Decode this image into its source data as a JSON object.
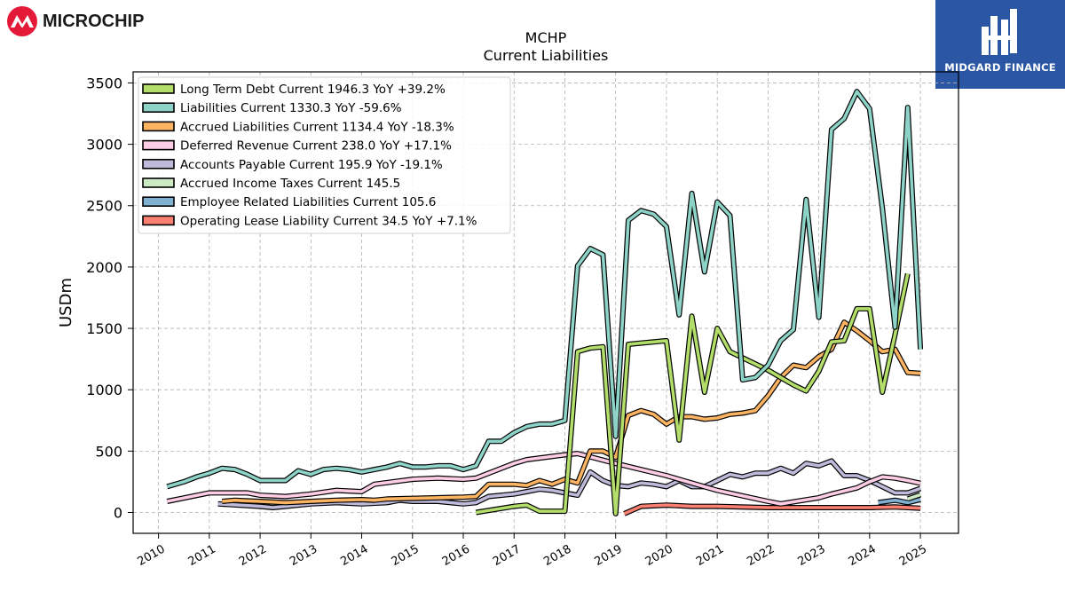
{
  "brand": {
    "left_name": "MICROCHIP",
    "right_name": "MIDGARD FINANCE"
  },
  "title_lines": [
    "MCHP",
    "Current  Liabilities"
  ],
  "chart_data": {
    "type": "line",
    "title": "MCHP\nCurrent  Liabilities",
    "ylabel": "USDm",
    "xlabel": "",
    "ylim": [
      -170,
      3590
    ],
    "xlim": [
      2009.5,
      2025.75
    ],
    "yticks": [
      0,
      500,
      1000,
      1500,
      2000,
      2500,
      3000,
      3500
    ],
    "xticks": [
      2010,
      2011,
      2012,
      2013,
      2014,
      2015,
      2016,
      2017,
      2018,
      2019,
      2020,
      2021,
      2022,
      2023,
      2024,
      2025
    ],
    "grid": true,
    "legend_position": "top-left",
    "series": [
      {
        "name": "Liabilities Current",
        "legend": "Liabilities Current  1330.3 YoY -59.6%",
        "color": "#8dd3c7",
        "x": [
          2010.17,
          2010.5,
          2010.75,
          2011.0,
          2011.25,
          2011.5,
          2011.75,
          2012.0,
          2012.25,
          2012.5,
          2012.75,
          2013.0,
          2013.25,
          2013.5,
          2013.75,
          2014.0,
          2014.25,
          2014.5,
          2014.75,
          2015.0,
          2015.25,
          2015.5,
          2015.75,
          2016.0,
          2016.25,
          2016.5,
          2016.75,
          2017.0,
          2017.25,
          2017.5,
          2017.75,
          2018.0,
          2018.25,
          2018.5,
          2018.75,
          2019.0,
          2019.25,
          2019.5,
          2019.75,
          2020.0,
          2020.25,
          2020.5,
          2020.75,
          2021.0,
          2021.25,
          2021.5,
          2021.75,
          2022.0,
          2022.25,
          2022.5,
          2022.75,
          2023.0,
          2023.25,
          2023.5,
          2023.75,
          2024.0,
          2024.25,
          2024.5,
          2024.75,
          2025.0
        ],
        "y": [
          210,
          250,
          290,
          320,
          360,
          350,
          310,
          260,
          260,
          260,
          340,
          310,
          350,
          360,
          350,
          330,
          350,
          370,
          400,
          370,
          370,
          380,
          380,
          350,
          380,
          580,
          580,
          650,
          700,
          720,
          720,
          750,
          2010,
          2150,
          2100,
          620,
          2380,
          2460,
          2430,
          2330,
          1610,
          2600,
          1960,
          2530,
          2420,
          1080,
          1100,
          1200,
          1400,
          1490,
          2550,
          1590,
          3120,
          3210,
          3430,
          3290,
          2480,
          1510,
          3300,
          1330
        ]
      },
      {
        "name": "Long Term Debt Current",
        "legend": "Long Term Debt Current  1946.3 YoY +39.2%",
        "color": "#b3de69",
        "x": [
          2016.25,
          2017.0,
          2017.25,
          2017.5,
          2017.75,
          2018.0,
          2018.25,
          2018.5,
          2018.75,
          2019.0,
          2019.25,
          2019.5,
          2019.75,
          2020.0,
          2020.25,
          2020.5,
          2020.75,
          2021.0,
          2021.25,
          2021.5,
          2021.75,
          2022.0,
          2022.25,
          2022.5,
          2022.75,
          2023.0,
          2023.25,
          2023.5,
          2023.75,
          2024.0,
          2024.25,
          2024.5,
          2024.75
        ],
        "y": [
          0,
          50,
          60,
          10,
          10,
          10,
          1310,
          1340,
          1350,
          -10,
          1370,
          1380,
          1390,
          1400,
          590,
          1600,
          980,
          1500,
          1310,
          1260,
          1210,
          1160,
          1100,
          1040,
          990,
          1150,
          1390,
          1400,
          1660,
          1660,
          980,
          1450,
          1946
        ]
      },
      {
        "name": "Accrued Liabilities Current",
        "legend": "Accrued Liabilities Current  1134.4 YoY -18.3%",
        "color": "#fdb462",
        "x": [
          2011.25,
          2011.5,
          2011.75,
          2012.0,
          2012.5,
          2013.0,
          2013.5,
          2014.0,
          2014.25,
          2014.5,
          2015.0,
          2015.5,
          2016.0,
          2016.25,
          2016.5,
          2016.75,
          2017.0,
          2017.25,
          2017.5,
          2017.75,
          2018.0,
          2018.25,
          2018.5,
          2018.75,
          2019.0,
          2019.25,
          2019.5,
          2019.75,
          2020.0,
          2020.25,
          2020.5,
          2020.75,
          2021.0,
          2021.25,
          2021.5,
          2021.75,
          2022.0,
          2022.25,
          2022.5,
          2022.75,
          2023.0,
          2023.25,
          2023.5,
          2023.75,
          2024.0,
          2024.25,
          2024.5,
          2024.75,
          2025.0
        ],
        "y": [
          90,
          100,
          95,
          90,
          80,
          90,
          100,
          105,
          100,
          110,
          115,
          120,
          125,
          130,
          230,
          230,
          230,
          220,
          260,
          230,
          270,
          240,
          500,
          500,
          450,
          790,
          830,
          800,
          720,
          780,
          780,
          760,
          770,
          800,
          810,
          830,
          950,
          1100,
          1200,
          1180,
          1270,
          1330,
          1550,
          1480,
          1400,
          1310,
          1330,
          1140,
          1134
        ]
      },
      {
        "name": "Deferred Revenue Current",
        "legend": "Deferred Revenue Current  238.0 YoY +17.1%",
        "color": "#fccde5",
        "x": [
          2010.17,
          2011.0,
          2011.5,
          2011.75,
          2012.0,
          2012.5,
          2013.0,
          2013.5,
          2014.0,
          2014.25,
          2015.0,
          2015.5,
          2016.0,
          2016.25,
          2017.0,
          2017.25,
          2018.0,
          2018.25,
          2019.0,
          2020.0,
          2021.0,
          2022.0,
          2022.25,
          2023.0,
          2023.25,
          2023.75,
          2024.0,
          2024.25,
          2024.5,
          2024.75,
          2025.0
        ],
        "y": [
          90,
          160,
          160,
          160,
          140,
          130,
          150,
          180,
          170,
          230,
          270,
          280,
          270,
          280,
          400,
          430,
          470,
          480,
          400,
          300,
          180,
          90,
          70,
          120,
          150,
          200,
          250,
          290,
          280,
          260,
          238
        ]
      },
      {
        "name": "Accounts Payable Current",
        "legend": "Accounts Payable Current  195.9 YoY -19.1%",
        "color": "#bebada",
        "x": [
          2011.17,
          2012.0,
          2012.25,
          2012.5,
          2013.0,
          2013.5,
          2014.0,
          2014.5,
          2014.75,
          2015.0,
          2015.5,
          2016.0,
          2016.25,
          2016.5,
          2017.0,
          2017.25,
          2017.5,
          2017.75,
          2018.0,
          2018.25,
          2018.5,
          2018.75,
          2019.0,
          2019.25,
          2019.5,
          2019.75,
          2020.0,
          2020.25,
          2020.5,
          2020.75,
          2021.0,
          2021.25,
          2021.5,
          2021.75,
          2022.0,
          2022.25,
          2022.5,
          2022.75,
          2023.0,
          2023.25,
          2023.5,
          2023.75,
          2024.0,
          2024.25,
          2024.5,
          2024.75,
          2025.0
        ],
        "y": [
          70,
          50,
          40,
          50,
          70,
          80,
          70,
          80,
          100,
          90,
          90,
          70,
          80,
          130,
          150,
          170,
          190,
          180,
          160,
          140,
          330,
          260,
          220,
          210,
          240,
          230,
          210,
          260,
          210,
          210,
          260,
          310,
          290,
          320,
          320,
          360,
          320,
          400,
          380,
          420,
          300,
          300,
          260,
          210,
          160,
          160,
          196
        ]
      },
      {
        "name": "Accrued Income Taxes Current",
        "legend": "Accrued Income Taxes Current  145.5",
        "color": "#ccebc5",
        "x": [
          2024.75,
          2025.0
        ],
        "y": [
          110,
          145.5
        ]
      },
      {
        "name": "Employee Related Liabilities Current",
        "legend": "Employee Related Liabilities Current  105.6",
        "color": "#80b1d3",
        "x": [
          2024.17,
          2024.5,
          2024.75,
          2025.0
        ],
        "y": [
          80,
          100,
          80,
          105.6
        ]
      },
      {
        "name": "Operating Lease Liability Current",
        "legend": "Operating Lease Liability Current  34.5 YoY +7.1%",
        "color": "#fb8072",
        "x": [
          2019.17,
          2019.5,
          2020.0,
          2020.5,
          2021.0,
          2022.0,
          2023.0,
          2024.0,
          2024.5,
          2025.0
        ],
        "y": [
          -10,
          50,
          60,
          50,
          50,
          40,
          40,
          40,
          45,
          34.5
        ]
      }
    ],
    "legend_order": [
      "Long Term Debt Current",
      "Liabilities Current",
      "Accrued Liabilities Current",
      "Deferred Revenue Current",
      "Accounts Payable Current",
      "Accrued Income Taxes Current",
      "Employee Related Liabilities Current",
      "Operating Lease Liability Current"
    ],
    "draw_order": [
      "Operating Lease Liability Current",
      "Employee Related Liabilities Current",
      "Accrued Income Taxes Current",
      "Accounts Payable Current",
      "Deferred Revenue Current",
      "Accrued Liabilities Current",
      "Long Term Debt Current",
      "Liabilities Current"
    ]
  }
}
